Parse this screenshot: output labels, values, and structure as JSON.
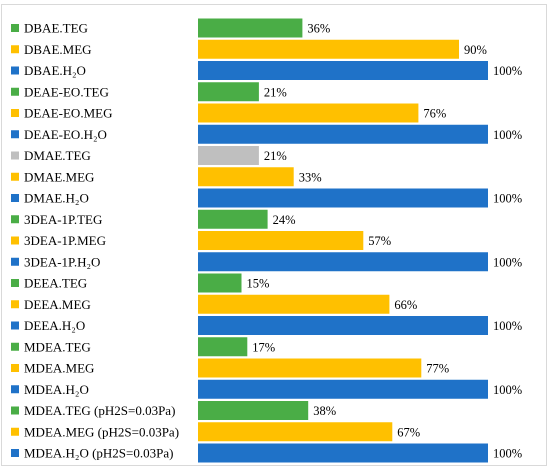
{
  "chart_data": {
    "type": "bar",
    "orientation": "horizontal",
    "categories": [
      "DBAE.TEG",
      "DBAE.MEG",
      "DBAE.H₂O",
      "DEAE-EO.TEG",
      "DEAE-EO.MEG",
      "DEAE-EO.H₂O",
      "DMAE.TEG",
      "DMAE.MEG",
      "DMAE.H₂O",
      "3DEA-1P.TEG",
      "3DEA-1P.MEG",
      "3DEA-1P.H₂O",
      "DEEA.TEG",
      "DEEA.MEG",
      "DEEA.H₂O",
      "MDEA.TEG",
      "MDEA.MEG",
      "MDEA.H₂O",
      "MDEA.TEG (pH2S=0.03Pa)",
      "MDEA.MEG (pH2S=0.03Pa)",
      "MDEA.H₂O (pH2S=0.03Pa)"
    ],
    "values": [
      36,
      90,
      100,
      21,
      76,
      100,
      21,
      33,
      100,
      24,
      57,
      100,
      15,
      66,
      100,
      17,
      77,
      100,
      38,
      67,
      100
    ],
    "value_labels": [
      "36%",
      "90%",
      "100%",
      "21%",
      "76%",
      "100%",
      "21%",
      "33%",
      "100%",
      "24%",
      "57%",
      "100%",
      "15%",
      "66%",
      "100%",
      "17%",
      "77%",
      "100%",
      "38%",
      "67%",
      "100%"
    ],
    "colors": [
      "#4aad46",
      "#ffc000",
      "#1f72c8",
      "#4aad46",
      "#ffc000",
      "#1f72c8",
      "#bfbfbf",
      "#ffc000",
      "#1f72c8",
      "#4aad46",
      "#ffc000",
      "#1f72c8",
      "#4aad46",
      "#ffc000",
      "#1f72c8",
      "#4aad46",
      "#ffc000",
      "#1f72c8",
      "#4aad46",
      "#ffc000",
      "#1f72c8"
    ],
    "xlim": [
      0,
      100
    ],
    "title": "",
    "xlabel": "",
    "ylabel": "",
    "grid": false,
    "legend": "none"
  }
}
